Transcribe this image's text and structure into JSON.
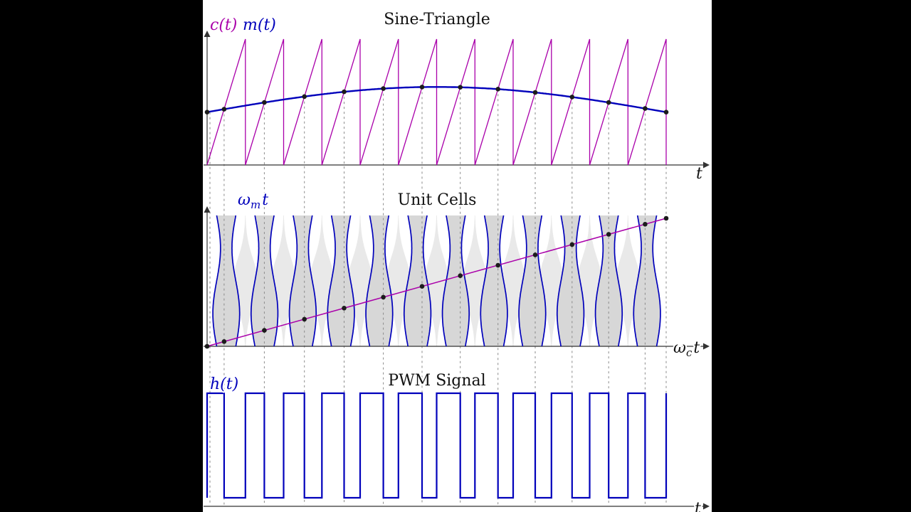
{
  "figure": {
    "description": "Three stacked plots demonstrating sine-triangle PWM: carrier/modulation comparison, unit-cell representation, and resulting PWM signal"
  },
  "colors": {
    "letterbox": "#000000",
    "panel": "#ffffff",
    "carrier": "#aa00aa",
    "modulation": "#0000bb",
    "axis": "#333333",
    "text": "#111111",
    "guide": "#8a8a8a",
    "dot": "#1c1c1c",
    "cell_fill": "#d7d7d7",
    "cell_ghost": "#e9e9e9"
  },
  "labels": {
    "omega": "ω",
    "sub_m": "m",
    "sub_c": "c",
    "t": "t"
  },
  "chart_data": [
    {
      "type": "line",
      "title": "Sine-Triangle",
      "xlabel": "t",
      "legend": [
        "c(t)",
        "m(t)"
      ],
      "legend_position": "top-left",
      "series": [
        {
          "name": "c(t)",
          "role": "carrier",
          "shape": "sawtooth",
          "periods": 12,
          "range": [
            0,
            1
          ]
        },
        {
          "name": "m(t)",
          "role": "modulation",
          "shape": "sine",
          "formula": "m(t) = 0.42 + 0.20*sin(pi*t/12)"
        }
      ],
      "modulation": {
        "offset": 0.42,
        "amplitude": 0.2
      },
      "sample_points_t": [
        0,
        0.444,
        1.496,
        2.543,
        3.581,
        4.607,
        5.619,
        6.617,
        7.603,
        8.576,
        9.54,
        10.497,
        11.449,
        12
      ],
      "sample_points_m": [
        0.42,
        0.444,
        0.496,
        0.543,
        0.581,
        0.607,
        0.619,
        0.617,
        0.603,
        0.576,
        0.54,
        0.497,
        0.449,
        0.42
      ],
      "grid": "dashed vertical guides at sample points",
      "ylim": [
        0,
        1
      ]
    },
    {
      "type": "area",
      "title": "Unit Cells",
      "xlabel": "ω_c t",
      "ylabel": "ω_m t",
      "cells": 12,
      "duty": {
        "offset": 0.5,
        "amplitude": 0.2
      },
      "boundary_formula": "x = 0.5 + 0.2*sin(ω_m t)",
      "trajectory": "ω_m t = (ω_m/ω_c)·ω_c t",
      "trajectory_shape": "straight diagonal line from origin with sample dots"
    },
    {
      "type": "line",
      "title": "PWM Signal",
      "xlabel": "t",
      "ylabel": "h(t)",
      "levels": [
        0,
        1
      ],
      "periods": 12,
      "duty_cycles": [
        0.444,
        0.496,
        0.543,
        0.581,
        0.607,
        0.619,
        0.617,
        0.603,
        0.576,
        0.54,
        0.497,
        0.449
      ]
    }
  ]
}
